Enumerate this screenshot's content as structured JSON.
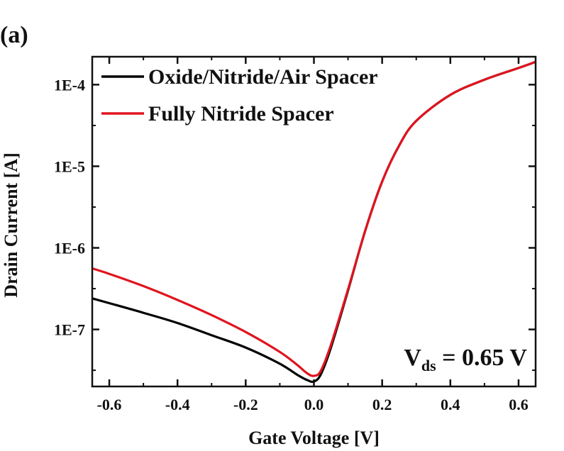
{
  "panel_label": "(a)",
  "chart_data": {
    "type": "line",
    "xlabel": "Gate Voltage [V]",
    "ylabel": "Drain Current [A]",
    "xlim": [
      -0.65,
      0.65
    ],
    "ylim": [
      2e-08,
      0.00022
    ],
    "yscale": "log",
    "xticks": [
      -0.6,
      -0.4,
      -0.2,
      0.0,
      0.2,
      0.4,
      0.6
    ],
    "xtick_labels": [
      "-0.6",
      "-0.4",
      "-0.2",
      "0.0",
      "0.2",
      "0.4",
      "0.6"
    ],
    "yticks": [
      1e-07,
      1e-06,
      1e-05,
      0.0001
    ],
    "ytick_labels": [
      "1E-7",
      "1E-6",
      "1E-5",
      "1E-4"
    ],
    "grid": false,
    "legend": "top-left",
    "annotation": {
      "main": "V",
      "sub": "ds",
      "rest": " = 0.65 V"
    },
    "series": [
      {
        "name": "Oxide/Nitride/Air Spacer",
        "color": "#000000",
        "x": [
          -0.65,
          -0.6,
          -0.5,
          -0.4,
          -0.3,
          -0.2,
          -0.1,
          -0.05,
          -0.02,
          0.0,
          0.02,
          0.05,
          0.1,
          0.15,
          0.2,
          0.25,
          0.3,
          0.4,
          0.5,
          0.6,
          0.65
        ],
        "y": [
          2.4e-07,
          2.1e-07,
          1.6e-07,
          1.2e-07,
          8.5e-08,
          6e-08,
          3.8e-08,
          2.8e-08,
          2.4e-08,
          2.3e-08,
          2.8e-08,
          6e-08,
          3e-07,
          1.6e-06,
          6.5e-06,
          1.8e-05,
          3.6e-05,
          7.5e-05,
          0.000115,
          0.00016,
          0.00019
        ]
      },
      {
        "name": "Fully Nitride Spacer",
        "color": "#e0141e",
        "x": [
          -0.65,
          -0.6,
          -0.5,
          -0.4,
          -0.3,
          -0.2,
          -0.1,
          -0.05,
          -0.02,
          0.0,
          0.02,
          0.05,
          0.1,
          0.15,
          0.2,
          0.25,
          0.3,
          0.4,
          0.5,
          0.6,
          0.65
        ],
        "y": [
          5.6e-07,
          4.8e-07,
          3.4e-07,
          2.3e-07,
          1.5e-07,
          9.3e-08,
          5.3e-08,
          3.7e-08,
          2.9e-08,
          2.7e-08,
          3.1e-08,
          6.5e-08,
          3.1e-07,
          1.6e-06,
          6.5e-06,
          1.8e-05,
          3.6e-05,
          7.5e-05,
          0.000115,
          0.00016,
          0.00019
        ]
      }
    ]
  }
}
